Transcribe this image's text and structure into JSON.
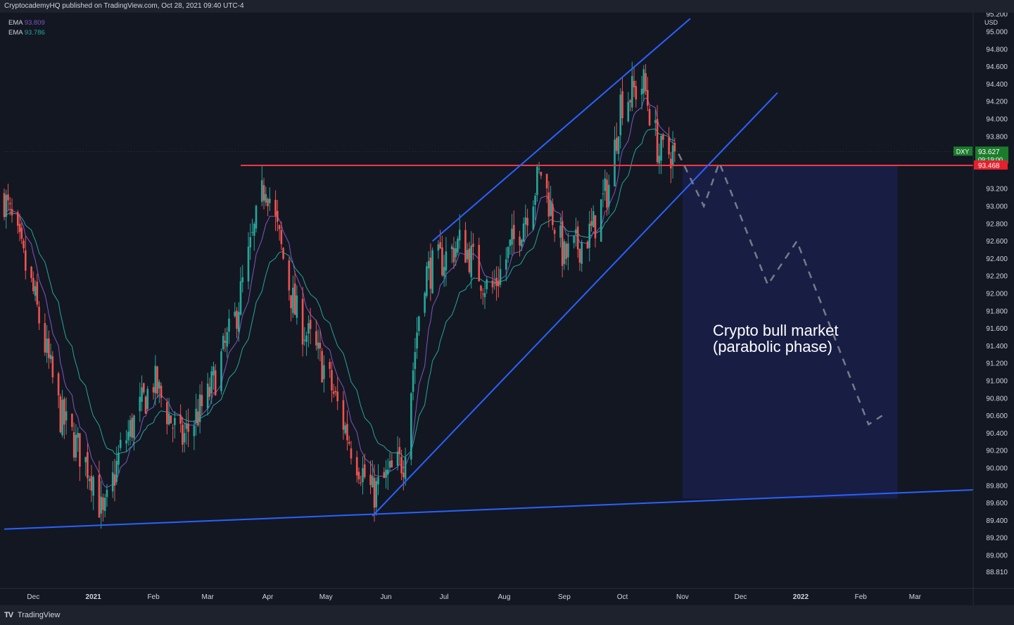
{
  "header": {
    "title": "CryptocademyHQ published on TradingView.com, Oct 28, 2021 09:40 UTC-4"
  },
  "footer": {
    "logo": "TV",
    "brand": "TradingView"
  },
  "legend": {
    "ema1": {
      "label": "EMA",
      "value": "93.809"
    },
    "ema2": {
      "label": "EMA",
      "value": "93.786"
    }
  },
  "price_scale": {
    "currency": "USD",
    "ticks": [
      "95.200",
      "95.000",
      "94.800",
      "94.600",
      "94.400",
      "94.200",
      "94.000",
      "93.800",
      "93.200",
      "93.000",
      "92.800",
      "92.600",
      "92.400",
      "92.200",
      "92.000",
      "91.800",
      "91.600",
      "91.400",
      "91.200",
      "91.000",
      "90.800",
      "90.600",
      "90.400",
      "90.200",
      "90.000",
      "89.800",
      "89.600",
      "89.400",
      "89.200",
      "89.000",
      "88.810"
    ],
    "symbol_tag": "DXY",
    "last_price": "93.627",
    "countdown": "09:19:00",
    "level_price": "93.468"
  },
  "time_axis": [
    "Dec",
    "2021",
    "Feb",
    "Mar",
    "Apr",
    "May",
    "Jun",
    "Jul",
    "Aug",
    "Sep",
    "Oct",
    "Nov",
    "Dec",
    "2022",
    "Feb",
    "Mar"
  ],
  "annotation": {
    "line1": "Crypto bull market",
    "line2": "(parabolic phase)"
  },
  "colors": {
    "background": "#131722",
    "up": "#26a69a",
    "down": "#ef5350",
    "trendline": "#2962ff",
    "resistance": "#f23645",
    "ema_fast": "#7e57c2",
    "ema_slow": "#26a69a",
    "zone": "#1a1f4a",
    "projection": "#787b86"
  },
  "chart_data": {
    "type": "candlestick",
    "symbol": "DXY",
    "title": "CryptocademyHQ published on TradingView.com, Oct 28, 2021 09:40 UTC-4",
    "x_range": [
      "2020-11-16",
      "2022-03-31"
    ],
    "y_range": [
      88.81,
      95.2
    ],
    "grid": false,
    "legend_position": "top-left",
    "series": [
      {
        "name": "EMA",
        "value": 93.809
      },
      {
        "name": "EMA",
        "value": 93.786
      }
    ],
    "close_path": [
      [
        "2020-11-16",
        93.1
      ],
      [
        "2020-12-01",
        92.0
      ],
      [
        "2020-12-15",
        90.6
      ],
      [
        "2021-01-01",
        89.9
      ],
      [
        "2021-01-06",
        89.4
      ],
      [
        "2021-01-15",
        90.2
      ],
      [
        "2021-02-01",
        91.0
      ],
      [
        "2021-02-15",
        90.3
      ],
      [
        "2021-03-01",
        90.8
      ],
      [
        "2021-03-15",
        91.7
      ],
      [
        "2021-03-31",
        93.3
      ],
      [
        "2021-04-15",
        91.8
      ],
      [
        "2021-05-01",
        91.1
      ],
      [
        "2021-05-15",
        90.2
      ],
      [
        "2021-05-25",
        89.7
      ],
      [
        "2021-06-10",
        90.1
      ],
      [
        "2021-06-20",
        92.2
      ],
      [
        "2021-07-01",
        92.4
      ],
      [
        "2021-07-10",
        92.6
      ],
      [
        "2021-07-25",
        92.0
      ],
      [
        "2021-08-10",
        92.8
      ],
      [
        "2021-08-20",
        93.4
      ],
      [
        "2021-09-01",
        92.4
      ],
      [
        "2021-09-15",
        92.7
      ],
      [
        "2021-09-25",
        93.3
      ],
      [
        "2021-09-30",
        94.2
      ],
      [
        "2021-10-12",
        94.4
      ],
      [
        "2021-10-20",
        93.6
      ],
      [
        "2021-10-28",
        93.627
      ]
    ],
    "resistance_level": 93.468,
    "last_price": 93.627,
    "trendlines": [
      {
        "name": "lower support",
        "from": [
          "2020-11-16",
          89.3
        ],
        "to": [
          "2022-03-31",
          89.75
        ]
      },
      {
        "name": "channel upper",
        "from": [
          "2021-06-25",
          92.6
        ],
        "to": [
          "2021-11-05",
          95.15
        ]
      },
      {
        "name": "channel lower",
        "from": [
          "2021-05-25",
          89.45
        ],
        "to": [
          "2021-12-20",
          94.3
        ]
      }
    ],
    "projection_path": [
      [
        "2021-10-30",
        93.6
      ],
      [
        "2021-11-12",
        93.0
      ],
      [
        "2021-11-20",
        93.5
      ],
      [
        "2021-12-15",
        92.1
      ],
      [
        "2021-12-30",
        92.6
      ],
      [
        "2022-02-05",
        90.5
      ],
      [
        "2022-02-12",
        90.6
      ]
    ],
    "zone": {
      "x": [
        "2021-11-01",
        "2022-02-20"
      ],
      "y": [
        89.65,
        93.468
      ]
    },
    "annotations": [
      "Crypto bull market",
      "(parabolic phase)"
    ]
  }
}
